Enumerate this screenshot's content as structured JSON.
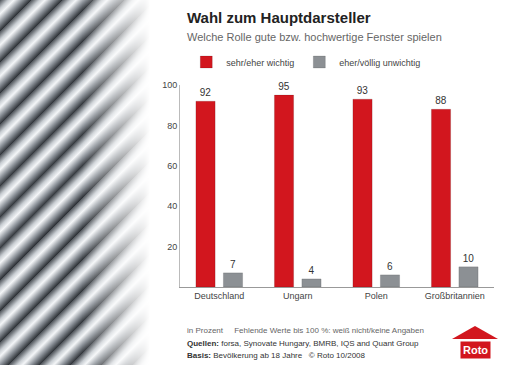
{
  "chart_data": {
    "type": "bar",
    "title": "Wahl zum Hauptdarsteller",
    "subtitle": "Welche Rolle gute bzw. hochwertige Fenster spielen",
    "categories": [
      "Deutschland",
      "Ungarn",
      "Polen",
      "Großbritannien"
    ],
    "series": [
      {
        "name": "sehr/eher wichtig",
        "color": "#d2161e",
        "values": [
          92,
          95,
          93,
          88
        ]
      },
      {
        "name": "eher/völlig unwichtig",
        "color": "#8c9094",
        "values": [
          7,
          4,
          6,
          10
        ]
      }
    ],
    "ylim": [
      0,
      100
    ],
    "yticks": [
      20,
      40,
      60,
      80,
      100
    ],
    "grid": false,
    "legend": "top",
    "data_labels": true,
    "notes": {
      "unit": "in Prozent",
      "missing": "Fehlende Werte bis 100 %: weiß nicht/keine Angaben",
      "sources_label": "Quellen:",
      "sources": "forsa, Synovate Hungary, BMRB, IQS and Quant Group",
      "basis_label": "Basis:",
      "basis": "Bevölkerung ab 18 Jahre",
      "copyright": "© Roto 10/2008"
    },
    "logo": "Roto"
  }
}
